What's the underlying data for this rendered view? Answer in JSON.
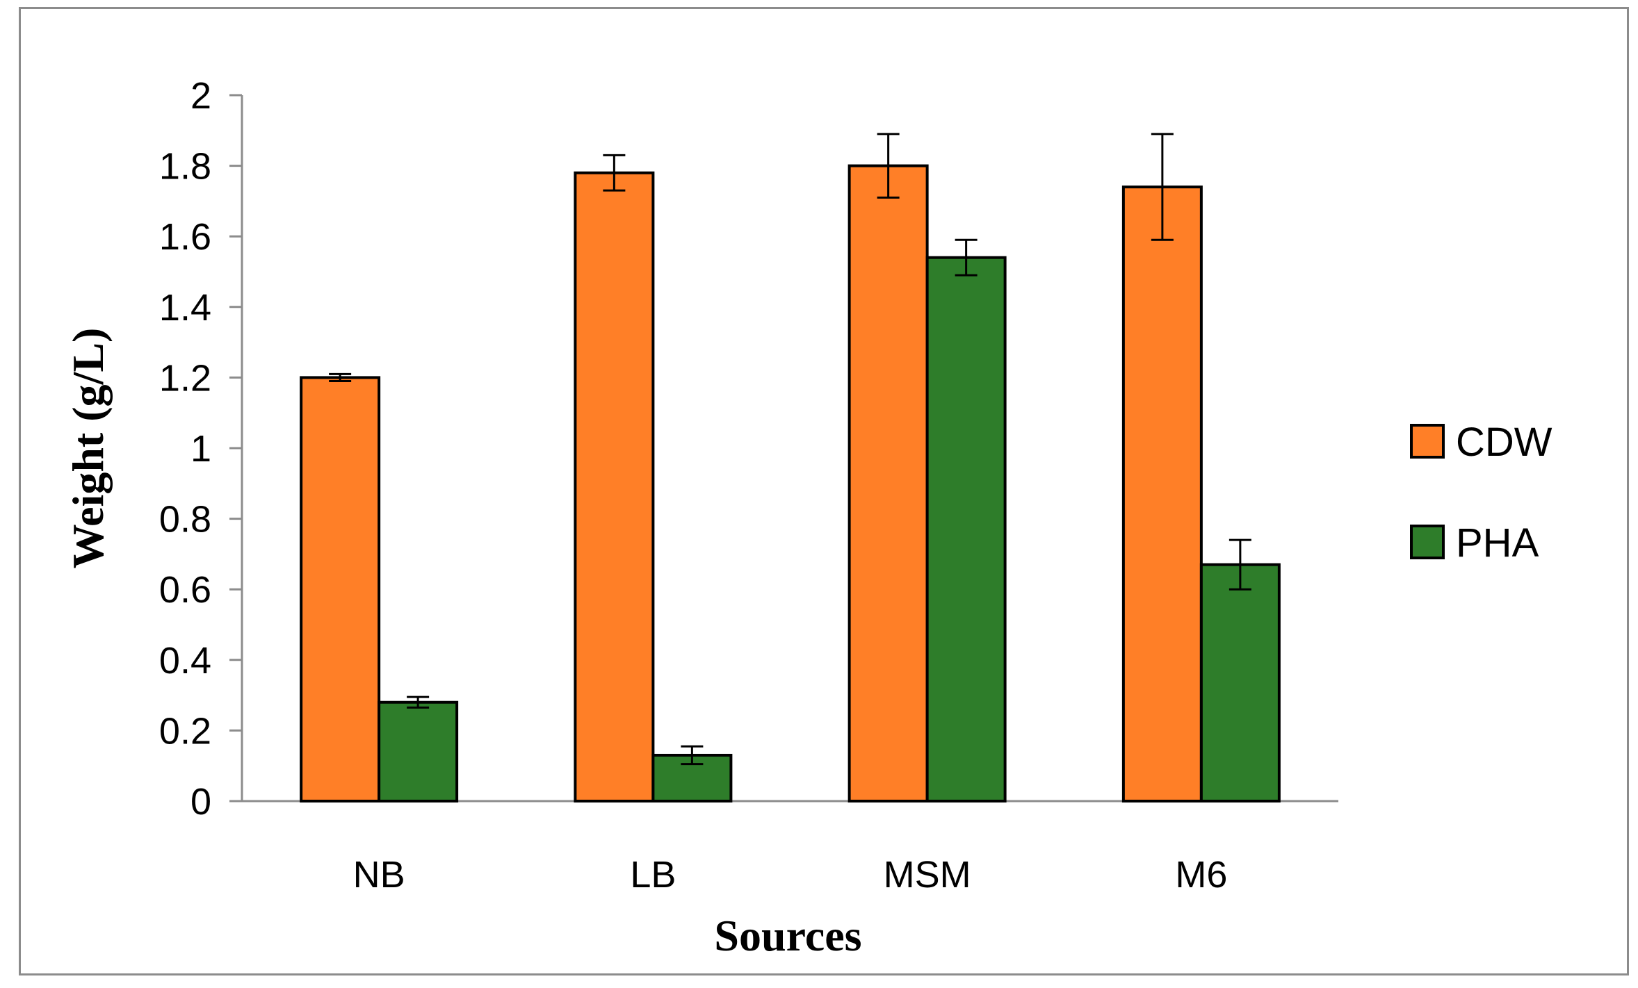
{
  "chart_data": {
    "type": "bar",
    "title": "",
    "xlabel": "Sources",
    "ylabel": "Weight (g/L)",
    "categories": [
      "NB",
      "LB",
      "MSM",
      "M6"
    ],
    "series": [
      {
        "name": "CDW",
        "color": "#FF7F27",
        "values": [
          1.2,
          1.78,
          1.8,
          1.74
        ],
        "errors": [
          0.01,
          0.05,
          0.09,
          0.15
        ]
      },
      {
        "name": "PHA",
        "color": "#2E7D2A",
        "values": [
          0.28,
          0.13,
          1.54,
          0.67
        ],
        "errors": [
          0.015,
          0.025,
          0.05,
          0.07
        ]
      }
    ],
    "ylim": [
      0,
      2
    ],
    "yticks": [
      0,
      0.2,
      0.4,
      0.6,
      0.8,
      1,
      1.2,
      1.4,
      1.6,
      1.8,
      2
    ],
    "ytick_labels": [
      "0",
      "0.2",
      "0.4",
      "0.6",
      "0.8",
      "1",
      "1.2",
      "1.4",
      "1.6",
      "1.8",
      "2"
    ],
    "grid": false,
    "legend_position": "right"
  }
}
